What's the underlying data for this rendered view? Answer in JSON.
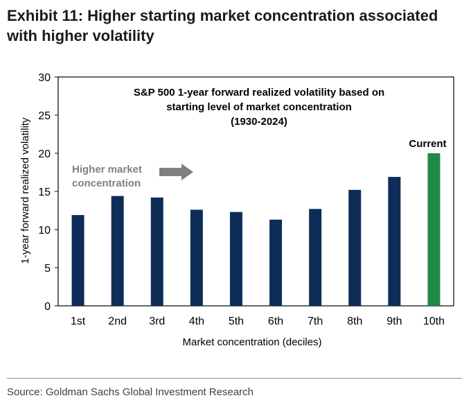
{
  "exhibit_title": "Exhibit 11: Higher starting market concentration associated with higher volatility",
  "source": "Source: Goldman Sachs Global Investment Research",
  "chart_data": {
    "type": "bar",
    "title_lines": [
      "S&P 500 1-year forward realized volatility based on",
      "starting level of market concentration",
      "(1930-2024)"
    ],
    "xlabel": "Market concentration (deciles)",
    "ylabel": "1-year forward realized volatility",
    "ylim": [
      0,
      30
    ],
    "yticks": [
      "0",
      "5",
      "10",
      "15",
      "20",
      "25",
      "30"
    ],
    "categories": [
      "1st",
      "2nd",
      "3rd",
      "4th",
      "5th",
      "6th",
      "7th",
      "8th",
      "9th",
      "10th"
    ],
    "values": [
      11.9,
      14.4,
      14.2,
      12.6,
      12.3,
      11.3,
      12.7,
      15.2,
      16.9,
      20.0
    ],
    "bar_colors": [
      "#0d2d58",
      "#0d2d58",
      "#0d2d58",
      "#0d2d58",
      "#0d2d58",
      "#0d2d58",
      "#0d2d58",
      "#0d2d58",
      "#0d2d58",
      "#1f8a45"
    ],
    "annotations": {
      "current_label": "Current",
      "arrow_text_line1": "Higher market",
      "arrow_text_line2": "concentration",
      "arrow_color": "#808080"
    },
    "grid": false
  }
}
